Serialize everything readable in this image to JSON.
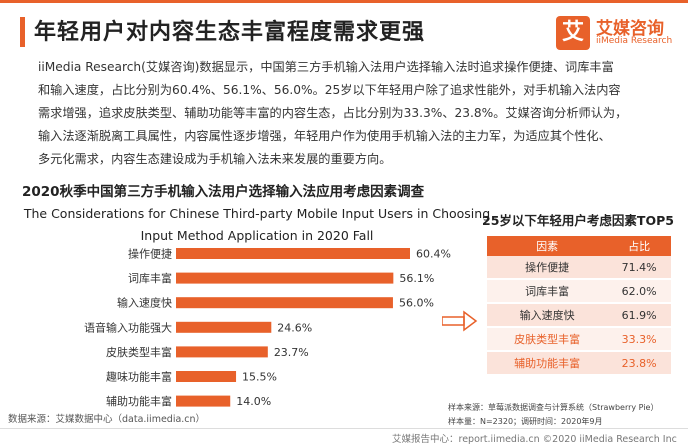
{
  "header": {
    "title": "年轻用户对内容生态丰富程度需求更强"
  },
  "logo": {
    "mark": "艾",
    "name_cn": "艾媒咨询",
    "name_en": "iiMedia Research"
  },
  "paragraph": {
    "line1": "iiMedia Research(艾媒咨询)数据显示，中国第三方手机输入法用户选择输入法时追求操作便捷、词库丰富",
    "line2": "和输入速度，占比分别为60.4%、56.1%、56.0%。25岁以下年轻用户除了追求性能外，对手机输入法内容",
    "line3": "需求增强，追求皮肤类型、辅助功能等丰富的内容生态，占比分别为33.3%、23.8%。艾媒咨询分析师认为，",
    "line4": "输入法逐渐脱离工具属性，内容属性逐步增强，年轻用户作为使用手机输入法的主力军，为适应其个性化、",
    "line5": "多元化需求，内容生态建设成为手机输入法未来发展的重要方向。"
  },
  "chart_heading": {
    "cn": "2020秋季中国第三方手机输入法用户选择输入法应用考虑因素调查",
    "en_line1": "The Considerations for Chinese Third-party Mobile Input Users in Choosing",
    "en_line2": "Input Method Application in 2020 Fall"
  },
  "chart_data": {
    "type": "bar",
    "orientation": "horizontal",
    "categories": [
      "操作便捷",
      "词库丰富",
      "输入速度快",
      "语音输入功能强大",
      "皮肤类型丰富",
      "趣味功能丰富",
      "辅助功能丰富"
    ],
    "values": [
      60.4,
      56.1,
      56.0,
      24.6,
      23.7,
      15.5,
      14.0
    ],
    "value_labels": [
      "60.4%",
      "56.1%",
      "56.0%",
      "24.6%",
      "23.7%",
      "15.5%",
      "14.0%"
    ],
    "unit": "%",
    "xlim": [
      0,
      60.4
    ],
    "grid": false,
    "bar_color": "#e8612a"
  },
  "source": "数据来源：艾媒数据中心（data.iimedia.cn）",
  "top5": {
    "title": "25岁以下年轻用户考虑因素TOP5",
    "headers": [
      "因素",
      "占比"
    ],
    "rows": [
      {
        "factor": "操作便捷",
        "share": "71.4%",
        "highlight": false
      },
      {
        "factor": "词库丰富",
        "share": "62.0%",
        "highlight": false
      },
      {
        "factor": "输入速度快",
        "share": "61.9%",
        "highlight": false
      },
      {
        "factor": "皮肤类型丰富",
        "share": "33.3%",
        "highlight": true
      },
      {
        "factor": "辅助功能丰富",
        "share": "23.8%",
        "highlight": true
      }
    ]
  },
  "sample": {
    "line1": "样本来源：草莓派数据调查与计算系统（Strawberry Pie）",
    "line2": "样本量：N=2320；调研时间：2020年9月"
  },
  "footer": {
    "text": "艾媒报告中心：report.iimedia.cn  ©2020  iiMedia Research  Inc"
  },
  "colors": {
    "accent": "#e8612a",
    "table_row_odd": "#fbe3da",
    "table_row_even": "#fdf1ec"
  }
}
